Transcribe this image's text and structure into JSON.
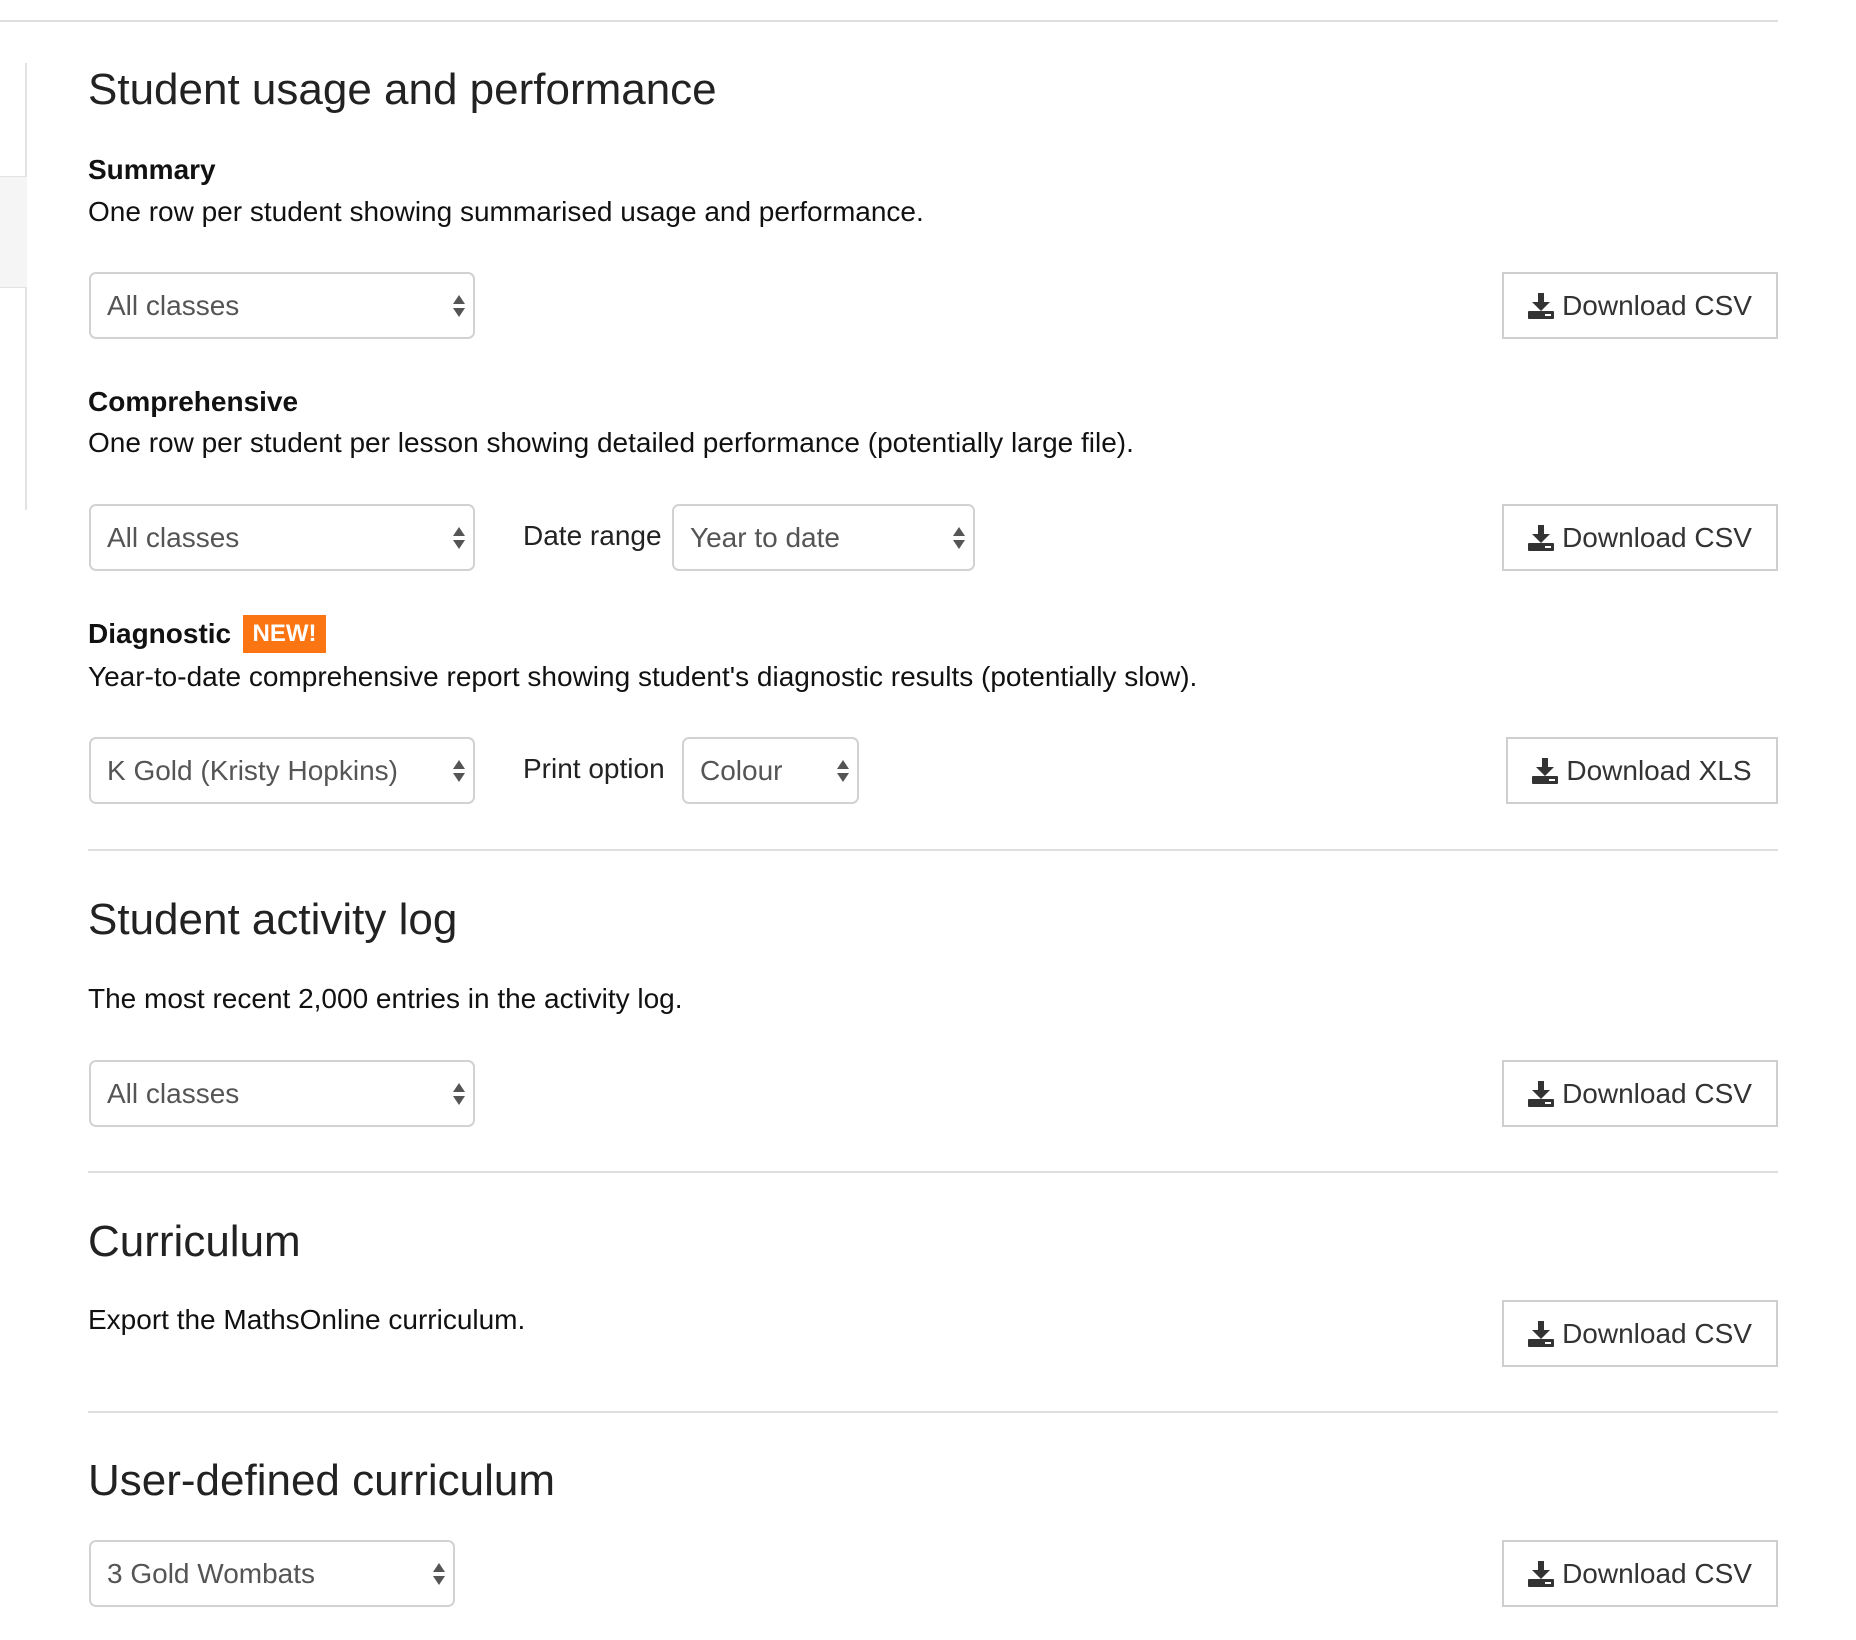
{
  "accent_color": "#fb7513",
  "usage": {
    "title": "Student usage and performance",
    "summary": {
      "heading": "Summary",
      "description": "One row per student showing summarised usage and performance.",
      "class_select": "All classes",
      "download_label": "Download CSV"
    },
    "comprehensive": {
      "heading": "Comprehensive",
      "description": "One row per student per lesson showing detailed performance (potentially large file).",
      "class_select": "All classes",
      "date_range_label": "Date range",
      "date_range_select": "Year to date",
      "download_label": "Download CSV"
    },
    "diagnostic": {
      "heading": "Diagnostic",
      "badge": "NEW!",
      "description": "Year-to-date comprehensive report showing student's diagnostic results (potentially slow).",
      "class_select": "K Gold (Kristy Hopkins)",
      "print_option_label": "Print option",
      "print_option_select": "Colour",
      "download_label": "Download XLS"
    }
  },
  "activity_log": {
    "title": "Student activity log",
    "description": "The most recent 2,000 entries in the activity log.",
    "class_select": "All classes",
    "download_label": "Download CSV"
  },
  "curriculum": {
    "title": "Curriculum",
    "description": "Export the MathsOnline curriculum.",
    "download_label": "Download CSV"
  },
  "user_curriculum": {
    "title": "User-defined curriculum",
    "class_select": "3 Gold Wombats",
    "download_label": "Download CSV"
  }
}
